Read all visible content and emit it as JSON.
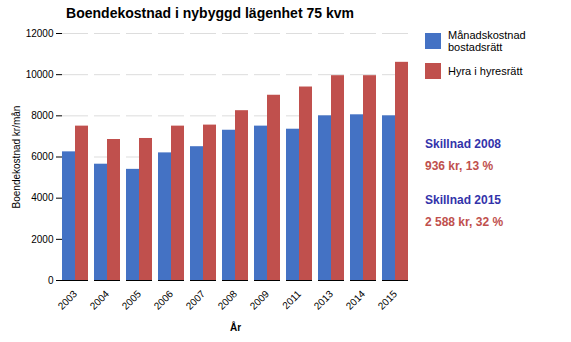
{
  "chart_data": {
    "type": "bar",
    "title": "Boendekostnad i nybyggd lägenhet 75 kvm",
    "xlabel": "År",
    "ylabel": "Boendekostnad kr/mån",
    "categories": [
      "2003",
      "2004",
      "2005",
      "2006",
      "2007",
      "2008",
      "2009",
      "2011",
      "2013",
      "2014",
      "2015"
    ],
    "series": [
      {
        "name": "Månadskostnad\nbostadsrätt",
        "color": "#4472C4",
        "values": [
          6250,
          5650,
          5400,
          6200,
          6500,
          7300,
          7500,
          7350,
          8000,
          8050,
          8000
        ]
      },
      {
        "name": "Hyra i hyresrätt",
        "color": "#C0504D",
        "values": [
          7500,
          6850,
          6900,
          7500,
          7550,
          8250,
          9000,
          9400,
          9950,
          9950,
          10600
        ]
      }
    ],
    "ylim": [
      0,
      12000
    ],
    "yticks": [
      0,
      2000,
      4000,
      6000,
      8000,
      10000,
      12000
    ],
    "grid": true,
    "legend": "upper right",
    "annotations": [
      {
        "text": "Skillnad  2008",
        "color": "#3333AA"
      },
      {
        "text": "936 kr, 13 %",
        "color": "#C0504D"
      },
      {
        "text": "Skillnad  2015",
        "color": "#3333AA"
      },
      {
        "text": "2 588 kr, 32 %",
        "color": "#C0504D"
      }
    ]
  }
}
